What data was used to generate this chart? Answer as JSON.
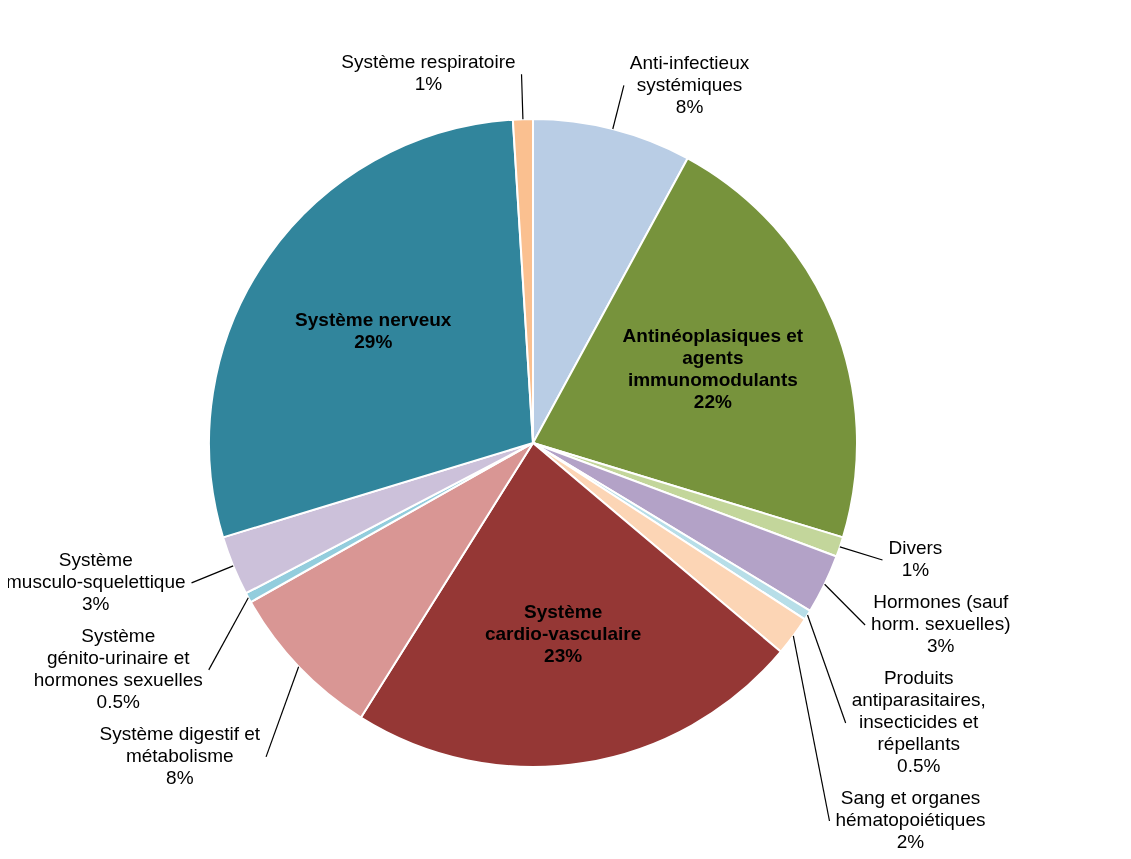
{
  "chart_data": {
    "type": "pie",
    "categories": [
      "Anti-infectieux systémiques",
      "Antinéoplasiques et agents immunomodulants",
      "Divers",
      "Hormones (sauf horm. sexuelles)",
      "Produits antiparasitaires, insecticides et répellants",
      "Sang et organes hématopoiétiques",
      "Système cardio-vasculaire",
      "Système digestif et métabolisme",
      "Système génito-urinaire et hormones sexuelles",
      "Système musculo-squelettique",
      "Système nerveux",
      "Système respiratoire"
    ],
    "values": [
      8,
      22,
      1,
      3,
      0.5,
      2,
      23,
      8,
      0.5,
      3,
      29,
      1
    ],
    "value_labels": [
      "8%",
      "22%",
      "1%",
      "3%",
      "0.5%",
      "2%",
      "23%",
      "8%",
      "0.5%",
      "3%",
      "29%",
      "1%"
    ],
    "colors": [
      "#b9cde5",
      "#77933c",
      "#c3d69b",
      "#b3a2c7",
      "#b7dee8",
      "#fcd5b5",
      "#953735",
      "#d99694",
      "#93cddd",
      "#ccc1da",
      "#31859c",
      "#fac090"
    ],
    "legend": false
  }
}
